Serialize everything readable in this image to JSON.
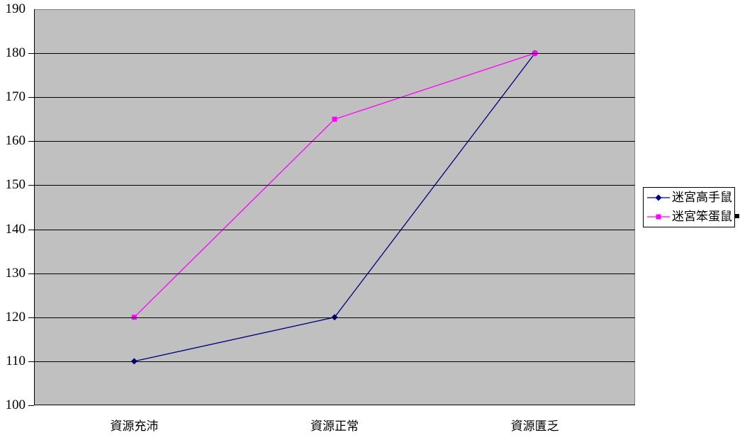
{
  "chart_data": {
    "type": "line",
    "title": "",
    "categories": [
      "資源充沛",
      "資源正常",
      "資源匱乏"
    ],
    "series": [
      {
        "name": "迷宮高手鼠",
        "values": [
          110,
          120,
          180
        ],
        "color": "#000080",
        "marker": "diamond"
      },
      {
        "name": "迷宮笨蛋鼠",
        "values": [
          120,
          165,
          180
        ],
        "color": "#FF00FF",
        "marker": "square"
      }
    ],
    "ylim": [
      100,
      190
    ],
    "yticks": [
      190,
      180,
      170,
      160,
      150,
      140,
      130,
      120,
      110,
      100
    ],
    "ytick_interval": 10,
    "grid": "horizontal-major",
    "gridline_color": "#000000",
    "axis_color": "#000000",
    "plot_background": "#C0C0C0",
    "plot_border_color": "#808080",
    "legend_position": "right",
    "legend_background": "#FFFFFF",
    "legend_border_color": "#000000"
  }
}
